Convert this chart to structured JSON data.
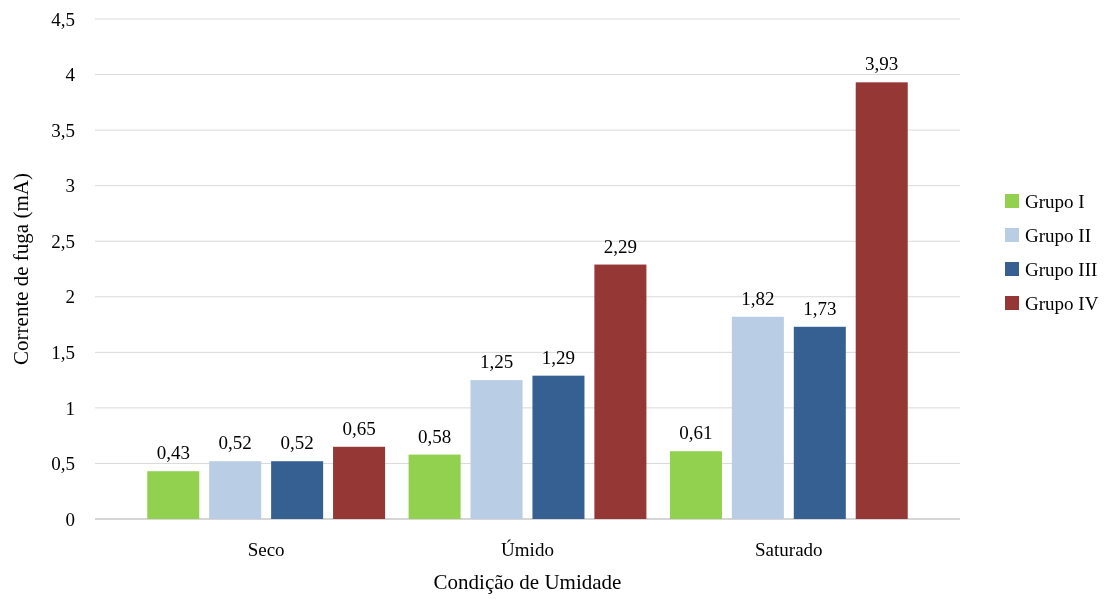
{
  "chart_data": {
    "type": "bar",
    "xlabel": "Condição de Umidade",
    "ylabel": "Corrente de fuga (mA)",
    "categories": [
      "Seco",
      "Úmido",
      "Saturado"
    ],
    "series": [
      {
        "name": "Grupo I",
        "color": "#92d050",
        "values": [
          0.43,
          0.58,
          0.61
        ],
        "value_labels": [
          "0,43",
          "0,58",
          "0,61"
        ]
      },
      {
        "name": "Grupo II",
        "color": "#b9cde5",
        "values": [
          0.52,
          1.25,
          1.82
        ],
        "value_labels": [
          "0,52",
          "1,25",
          "1,82"
        ]
      },
      {
        "name": "Grupo III",
        "color": "#376092",
        "values": [
          0.52,
          1.29,
          1.73
        ],
        "value_labels": [
          "0,52",
          "1,29",
          "1,73"
        ]
      },
      {
        "name": "Grupo IV",
        "color": "#953735",
        "values": [
          0.65,
          2.29,
          3.93
        ],
        "value_labels": [
          "0,65",
          "2,29",
          "3,93"
        ]
      }
    ],
    "ylim": [
      0,
      4.5
    ],
    "yticks": [
      0,
      {
        "value": 0.5,
        "label": "0,5"
      },
      1,
      {
        "value": 1.5,
        "label": "1,5"
      },
      2,
      {
        "value": 2.5,
        "label": "2,5"
      },
      3,
      {
        "value": 3.5,
        "label": "3,5"
      },
      4,
      {
        "value": 4.5,
        "label": "4,5"
      }
    ],
    "grid": "y",
    "legend": "right"
  }
}
